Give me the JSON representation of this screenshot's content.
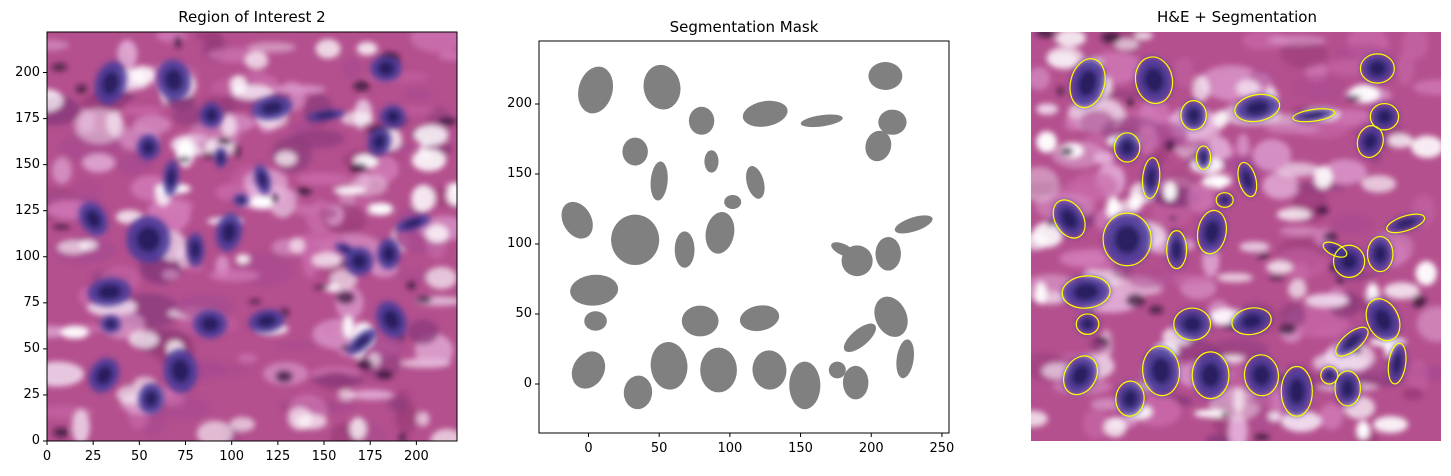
{
  "panels": [
    {
      "title": "Region of Interest 2",
      "x_ticks": [
        0,
        25,
        50,
        75,
        100,
        125,
        150,
        175,
        200
      ],
      "y_ticks": [
        0,
        25,
        50,
        75,
        100,
        125,
        150,
        175,
        200
      ],
      "xlim": [
        0,
        222
      ],
      "ylim": [
        0,
        222
      ]
    },
    {
      "title": "Segmentation Mask",
      "x_ticks": [
        0,
        50,
        100,
        150,
        200,
        250
      ],
      "y_ticks": [
        0,
        50,
        100,
        150,
        200
      ],
      "xlim": [
        -35,
        255
      ],
      "ylim": [
        -35,
        245
      ],
      "mask_color": "#808080"
    },
    {
      "title": "H&E + Segmentation",
      "contour_color": "#ffff00"
    }
  ],
  "nuclei": [
    {
      "x": 5,
      "y": 210,
      "rx": 12,
      "ry": 17,
      "rot": 15
    },
    {
      "x": 52,
      "y": 212,
      "rx": 13,
      "ry": 16,
      "rot": -10
    },
    {
      "x": 80,
      "y": 188,
      "rx": 9,
      "ry": 10,
      "rot": 0
    },
    {
      "x": 125,
      "y": 193,
      "rx": 16,
      "ry": 9,
      "rot": -10
    },
    {
      "x": 165,
      "y": 188,
      "rx": 15,
      "ry": 4,
      "rot": -8
    },
    {
      "x": 210,
      "y": 220,
      "rx": 12,
      "ry": 10,
      "rot": 0
    },
    {
      "x": 215,
      "y": 187,
      "rx": 10,
      "ry": 9,
      "rot": 0
    },
    {
      "x": 205,
      "y": 170,
      "rx": 9,
      "ry": 11,
      "rot": 15
    },
    {
      "x": 33,
      "y": 166,
      "rx": 9,
      "ry": 10,
      "rot": 0
    },
    {
      "x": 87,
      "y": 159,
      "rx": 5,
      "ry": 8,
      "rot": 0
    },
    {
      "x": 50,
      "y": 145,
      "rx": 6,
      "ry": 14,
      "rot": 5
    },
    {
      "x": 118,
      "y": 144,
      "rx": 6,
      "ry": 12,
      "rot": -15
    },
    {
      "x": 102,
      "y": 130,
      "rx": 6,
      "ry": 5,
      "rot": 0
    },
    {
      "x": -8,
      "y": 117,
      "rx": 10,
      "ry": 14,
      "rot": -30
    },
    {
      "x": 33,
      "y": 103,
      "rx": 17,
      "ry": 18,
      "rot": 0
    },
    {
      "x": 68,
      "y": 96,
      "rx": 7,
      "ry": 13,
      "rot": 0
    },
    {
      "x": 93,
      "y": 108,
      "rx": 10,
      "ry": 15,
      "rot": 10
    },
    {
      "x": 230,
      "y": 114,
      "rx": 14,
      "ry": 5,
      "rot": -18
    },
    {
      "x": 180,
      "y": 96,
      "rx": 9,
      "ry": 4,
      "rot": 25
    },
    {
      "x": 212,
      "y": 93,
      "rx": 9,
      "ry": 12,
      "rot": 0
    },
    {
      "x": 190,
      "y": 88,
      "rx": 11,
      "ry": 11,
      "rot": 0
    },
    {
      "x": 4,
      "y": 67,
      "rx": 17,
      "ry": 11,
      "rot": -5
    },
    {
      "x": 5,
      "y": 45,
      "rx": 8,
      "ry": 7,
      "rot": 0
    },
    {
      "x": 79,
      "y": 45,
      "rx": 13,
      "ry": 11,
      "rot": 0
    },
    {
      "x": 121,
      "y": 47,
      "rx": 14,
      "ry": 9,
      "rot": -10
    },
    {
      "x": 214,
      "y": 48,
      "rx": 11,
      "ry": 15,
      "rot": -25
    },
    {
      "x": 192,
      "y": 33,
      "rx": 14,
      "ry": 6,
      "rot": -40
    },
    {
      "x": 0,
      "y": 10,
      "rx": 11,
      "ry": 14,
      "rot": 30
    },
    {
      "x": 57,
      "y": 13,
      "rx": 13,
      "ry": 17,
      "rot": -5
    },
    {
      "x": 35,
      "y": -6,
      "rx": 10,
      "ry": 12,
      "rot": 5
    },
    {
      "x": 92,
      "y": 10,
      "rx": 13,
      "ry": 16,
      "rot": 0
    },
    {
      "x": 128,
      "y": 10,
      "rx": 12,
      "ry": 14,
      "rot": -5
    },
    {
      "x": 153,
      "y": -1,
      "rx": 11,
      "ry": 17,
      "rot": 0
    },
    {
      "x": 176,
      "y": 10,
      "rx": 6,
      "ry": 6,
      "rot": 0
    },
    {
      "x": 189,
      "y": 1,
      "rx": 9,
      "ry": 12,
      "rot": 0
    },
    {
      "x": 224,
      "y": 18,
      "rx": 6,
      "ry": 14,
      "rot": 8
    }
  ]
}
